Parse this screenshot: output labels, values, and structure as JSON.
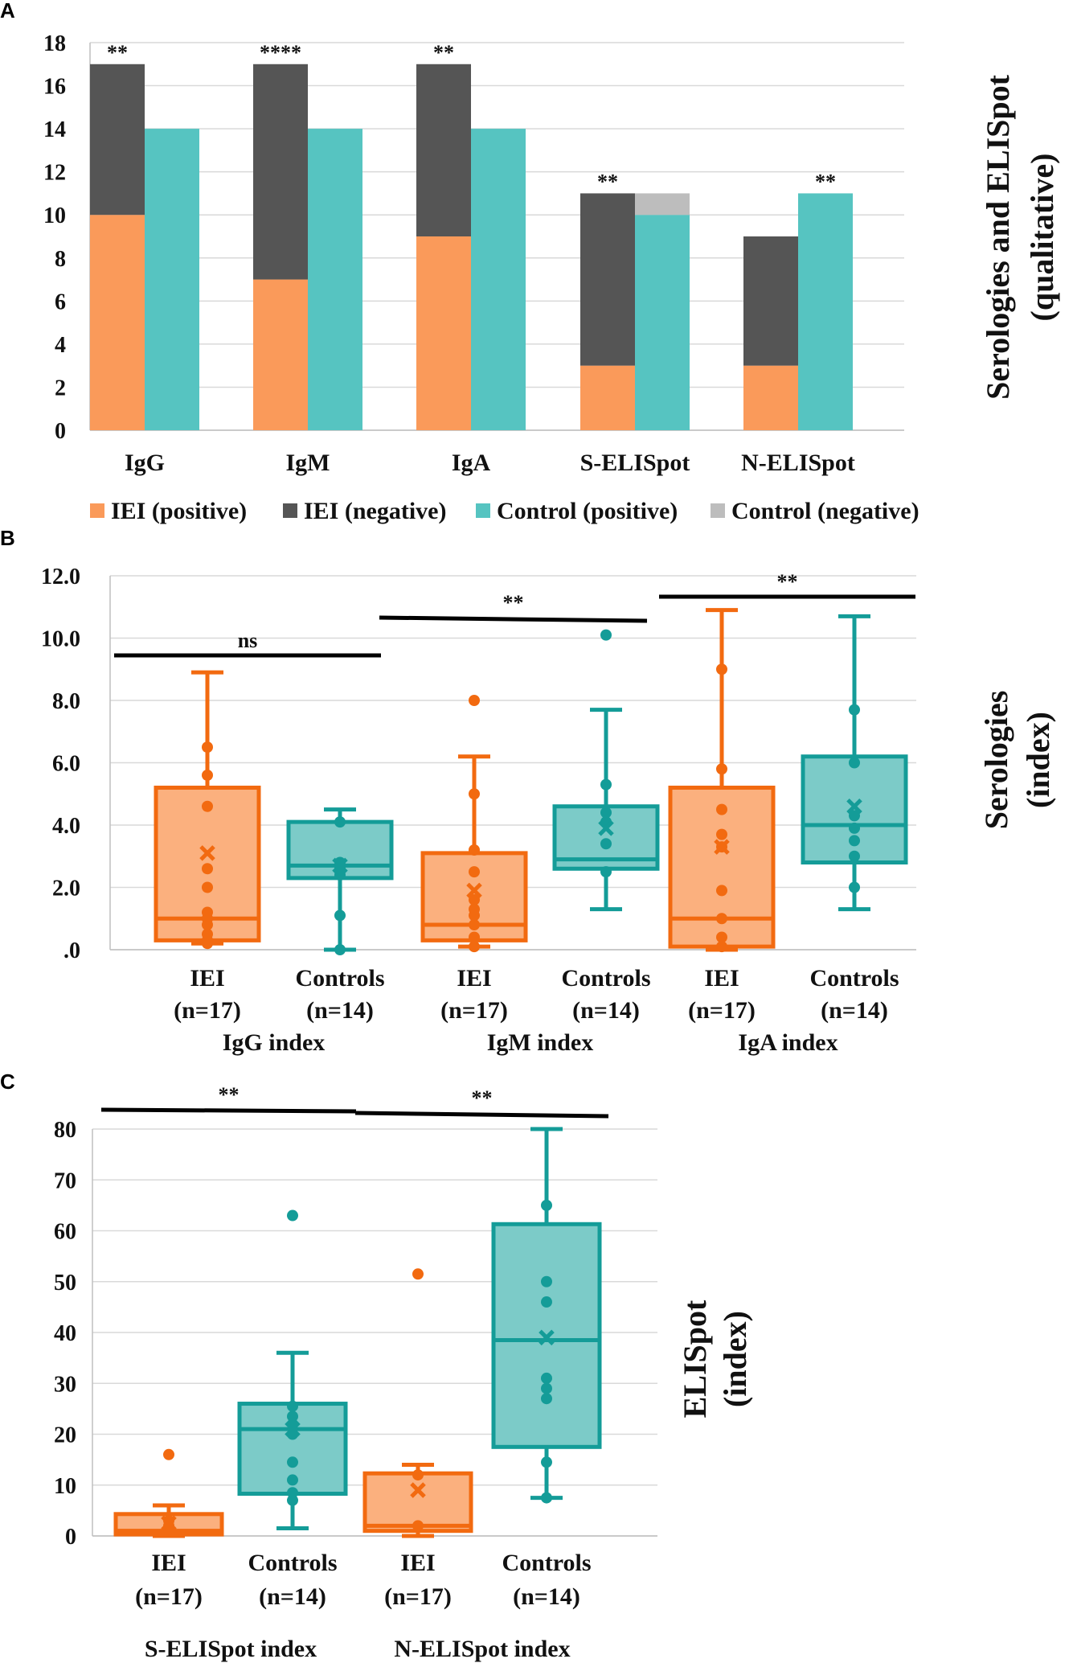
{
  "colors": {
    "iei_pos": "#fa9a5a",
    "iei_neg": "#555555",
    "ctrl_pos": "#56c4c1",
    "ctrl_neg": "#bdbdbd",
    "iei_box_fill": "#fbb07e",
    "iei_line": "#f26a10",
    "ctrl_box_fill": "#7ccbc8",
    "ctrl_line": "#149c98",
    "grid": "#d9d9d9"
  },
  "chart_data": [
    {
      "panel": "A",
      "type": "bar",
      "stacked": true,
      "side_title": [
        "Serologies and ELISpot",
        "(qualitative)"
      ],
      "categories": [
        "IgG",
        "IgM",
        "IgA",
        "S-ELISpot",
        "N-ELISpot"
      ],
      "series": [
        {
          "name": "IEI (positive)",
          "group": "IEI",
          "values": [
            10,
            7,
            9,
            3,
            3
          ]
        },
        {
          "name": "IEI (negative)",
          "group": "IEI",
          "values": [
            7,
            10,
            8,
            8,
            6
          ]
        },
        {
          "name": "Control (positive)",
          "group": "Control",
          "values": [
            14,
            14,
            14,
            10,
            11
          ]
        },
        {
          "name": "Control (negative)",
          "group": "Control",
          "values": [
            0,
            0,
            0,
            1,
            0
          ]
        }
      ],
      "significance": [
        "**",
        "****",
        "**",
        "**",
        "**"
      ],
      "yticks": [
        "0",
        "2",
        "4",
        "6",
        "8",
        "10",
        "12",
        "14",
        "16",
        "18"
      ],
      "ylim": [
        0,
        18
      ]
    },
    {
      "panel": "B",
      "type": "box",
      "side_title": [
        "Serologies",
        "(index)"
      ],
      "yticks": [
        ".0",
        "2.0",
        "4.0",
        "6.0",
        "8.0",
        "10.0",
        "12.0"
      ],
      "ylim": [
        0,
        12
      ],
      "groups": [
        {
          "name": "IgG index",
          "boxes": [
            {
              "label": "IEI",
              "n": "(n=17)",
              "kind": "iei",
              "min": 0.2,
              "q1": 0.3,
              "median": 1.0,
              "q3": 5.2,
              "max": 8.9,
              "mean": 3.1,
              "points": [
                0.2,
                0.3,
                0.5,
                0.8,
                1.0,
                1.2,
                2.0,
                2.6,
                4.6,
                5.6,
                6.5
              ]
            },
            {
              "label": "Controls",
              "n": "(n=14)",
              "kind": "ctrl",
              "min": 0.0,
              "q1": 2.3,
              "median": 2.7,
              "q3": 4.1,
              "max": 4.5,
              "mean": 2.7,
              "points": [
                0.0,
                1.1,
                2.4,
                2.6,
                2.8,
                4.1
              ]
            }
          ],
          "significance": "ns"
        },
        {
          "name": "IgM  index",
          "boxes": [
            {
              "label": "IEI",
              "n": "(n=17)",
              "kind": "iei",
              "min": 0.1,
              "q1": 0.3,
              "median": 0.8,
              "q3": 3.1,
              "max": 6.2,
              "mean": 1.9,
              "points": [
                0.1,
                0.4,
                0.8,
                1.1,
                1.3,
                1.6,
                2.5,
                3.2,
                5.0,
                8.0
              ]
            },
            {
              "label": "Controls",
              "n": "(n=14)",
              "kind": "ctrl",
              "min": 1.3,
              "q1": 2.6,
              "median": 2.9,
              "q3": 4.6,
              "max": 7.7,
              "mean": 3.9,
              "points": [
                2.5,
                3.4,
                4.1,
                4.4,
                5.3,
                10.1
              ]
            }
          ],
          "significance": "**"
        },
        {
          "name": "IgA index",
          "boxes": [
            {
              "label": "IEI",
              "n": "(n=17)",
              "kind": "iei",
              "min": 0.0,
              "q1": 0.1,
              "median": 1.0,
              "q3": 5.2,
              "max": 10.9,
              "mean": 3.3,
              "points": [
                0.1,
                0.4,
                1.0,
                1.9,
                3.3,
                3.7,
                4.5,
                5.8,
                9.0
              ]
            },
            {
              "label": "Controls",
              "n": "(n=14)",
              "kind": "ctrl",
              "min": 1.3,
              "q1": 2.8,
              "median": 4.0,
              "q3": 6.2,
              "max": 10.7,
              "mean": 4.6,
              "points": [
                2.0,
                3.0,
                3.5,
                3.9,
                4.3,
                6.0,
                7.7
              ]
            }
          ],
          "significance": "**"
        }
      ]
    },
    {
      "panel": "C",
      "type": "box",
      "side_title": [
        "ELISpot",
        "(index)"
      ],
      "yticks": [
        "0",
        "10",
        "20",
        "30",
        "40",
        "50",
        "60",
        "70",
        "80"
      ],
      "ylim": [
        0,
        80
      ],
      "groups": [
        {
          "name": "S-ELISpot index",
          "boxes": [
            {
              "label": "IEI",
              "n": "(n=17)",
              "kind": "iei",
              "min": 0.0,
              "q1": 0.3,
              "median": 1.0,
              "q3": 4.3,
              "max": 6.0,
              "mean": 2.5,
              "points": [
                1.0,
                2.0,
                3.0,
                16.0
              ]
            },
            {
              "label": "Controls",
              "n": "(n=14)",
              "kind": "ctrl",
              "min": 1.5,
              "q1": 8.3,
              "median": 21.0,
              "q3": 26.0,
              "max": 36.0,
              "mean": 21.0,
              "points": [
                7.0,
                8.5,
                11.0,
                14.5,
                20.0,
                22.0,
                23.5,
                25.5,
                63.0
              ]
            }
          ],
          "significance": "**"
        },
        {
          "name": "N-ELISpot index",
          "boxes": [
            {
              "label": "IEI",
              "n": "(n=17)",
              "kind": "iei",
              "min": 0.0,
              "q1": 1.0,
              "median": 2.0,
              "q3": 12.3,
              "max": 14.0,
              "mean": 9.0,
              "points": [
                2.0,
                12.0,
                51.5
              ]
            },
            {
              "label": "Controls",
              "n": "(n=14)",
              "kind": "ctrl",
              "min": 7.5,
              "q1": 17.5,
              "median": 38.5,
              "q3": 61.3,
              "max": 80.0,
              "mean": 39.0,
              "points": [
                7.5,
                14.5,
                27.0,
                29.0,
                31.0,
                46.0,
                50.0,
                65.0
              ]
            }
          ],
          "significance": "**"
        }
      ]
    }
  ]
}
